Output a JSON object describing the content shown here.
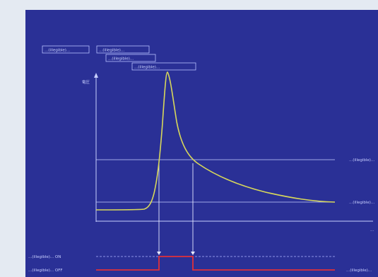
{
  "labels": {
    "legend_box": "...(illegible)...",
    "top_tag_1": "...(illegible)...",
    "top_tag_2": "...(illegible)...",
    "top_tag_3": "...(illegible)...",
    "y_axis": "電圧",
    "right_upper": "...(illegible)...",
    "right_lower": "...(illegible)...",
    "right_axis_end": "...",
    "signal_on": "...(illegible)... ON",
    "signal_off": "...(illegible)... OFF",
    "signal_right": "...(illegible)..."
  },
  "colors": {
    "panel_bg": "#2a3096",
    "curve": "#d8d85a",
    "signal": "#e0303a",
    "lines": "#c8d0ff"
  }
}
